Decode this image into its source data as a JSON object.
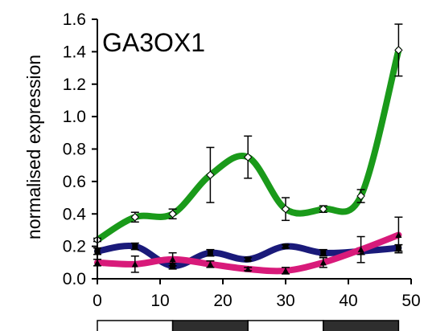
{
  "chart_data": {
    "type": "line",
    "title": "GA3OX1",
    "xlabel": "",
    "ylabel": "normalised expression",
    "xlim": [
      0,
      50
    ],
    "ylim": [
      0,
      1.6
    ],
    "x_ticks": [
      0,
      10,
      20,
      30,
      40,
      50
    ],
    "x_tick_labels": [
      "0",
      "10",
      "20",
      "30",
      "40",
      "50"
    ],
    "y_ticks": [
      0,
      0.2,
      0.4,
      0.6,
      0.8,
      1.0,
      1.2,
      1.4,
      1.6
    ],
    "y_tick_labels": [
      "0.0",
      "0.2",
      "0.4",
      "0.6",
      "0.8",
      "1.0",
      "1.2",
      "1.4",
      "1.6"
    ],
    "grid": false,
    "legend": "none",
    "light_dark_bar": [
      {
        "start": 0,
        "end": 12,
        "phase": "light"
      },
      {
        "start": 12,
        "end": 24,
        "phase": "dark"
      },
      {
        "start": 24,
        "end": 36,
        "phase": "light"
      },
      {
        "start": 36,
        "end": 48,
        "phase": "dark"
      }
    ],
    "series": [
      {
        "color": "#1a9a1a",
        "marker": "open-diamond",
        "x": [
          0,
          6,
          12,
          18,
          24,
          30,
          36,
          42,
          48
        ],
        "y": [
          0.24,
          0.38,
          0.4,
          0.64,
          0.75,
          0.43,
          0.43,
          0.51,
          1.41
        ],
        "error": [
          0.01,
          0.03,
          0.03,
          0.17,
          0.13,
          0.07,
          0.02,
          0.04,
          0.16
        ]
      },
      {
        "color": "#1a1a7a",
        "marker": "filled-square",
        "x": [
          0,
          6,
          12,
          18,
          24,
          30,
          36,
          42,
          48
        ],
        "y": [
          0.17,
          0.2,
          0.08,
          0.16,
          0.12,
          0.2,
          0.16,
          0.17,
          0.19
        ],
        "error": [
          0.02,
          0.02,
          0.02,
          0.02,
          0.01,
          0.01,
          0.02,
          0.02,
          0.02
        ]
      },
      {
        "color": "#d81a7a",
        "marker": "filled-triangle",
        "x": [
          0,
          6,
          12,
          18,
          24,
          30,
          36,
          42,
          48
        ],
        "y": [
          0.1,
          0.09,
          0.12,
          0.09,
          0.06,
          0.05,
          0.1,
          0.18,
          0.27
        ],
        "error": [
          0.02,
          0.05,
          0.04,
          0.02,
          0.01,
          0.02,
          0.03,
          0.08,
          0.11
        ]
      }
    ]
  }
}
